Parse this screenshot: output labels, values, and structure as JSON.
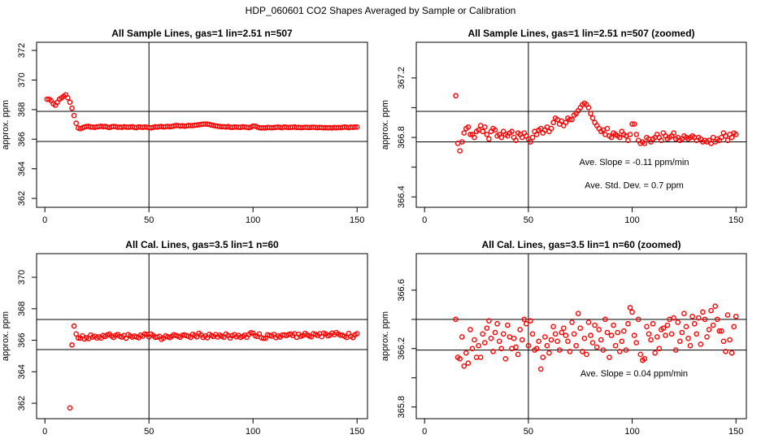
{
  "title": "HDP_060601  CO2 Shapes Averaged by Sample or Calibration",
  "chart_data": [
    {
      "type": "scatter",
      "title": "All Sample Lines, gas=1 lin=2.51 n=507",
      "y_label": "approx. ppm",
      "color": "#ff0000",
      "xlim": [
        -4,
        155
      ],
      "xticks": [
        0,
        50,
        100,
        150
      ],
      "ylim": [
        361.4,
        372.55
      ],
      "yticks": [
        362,
        364,
        366,
        368,
        370,
        372
      ],
      "hlines": [
        367.88,
        365.85
      ],
      "vlines": [
        50
      ],
      "x": [
        1,
        2,
        3,
        4,
        5,
        6,
        7,
        8,
        9,
        10,
        11,
        12,
        13,
        14,
        15,
        16,
        17,
        18,
        19,
        20,
        21,
        22,
        23,
        24,
        25,
        26,
        27,
        28,
        29,
        30,
        31,
        32,
        33,
        34,
        35,
        36,
        37,
        38,
        39,
        40,
        41,
        42,
        43,
        44,
        45,
        46,
        47,
        48,
        49,
        50,
        51,
        52,
        53,
        54,
        55,
        56,
        57,
        58,
        59,
        60,
        61,
        62,
        63,
        64,
        65,
        66,
        67,
        68,
        69,
        70,
        71,
        72,
        73,
        74,
        75,
        76,
        77,
        78,
        79,
        80,
        81,
        82,
        83,
        84,
        85,
        86,
        87,
        88,
        89,
        90,
        91,
        92,
        93,
        94,
        95,
        96,
        97,
        98,
        99,
        100,
        101,
        102,
        103,
        104,
        105,
        106,
        107,
        108,
        109,
        110,
        111,
        112,
        113,
        114,
        115,
        116,
        117,
        118,
        119,
        120,
        121,
        122,
        123,
        124,
        125,
        126,
        127,
        128,
        129,
        130,
        131,
        132,
        133,
        134,
        135,
        136,
        137,
        138,
        139,
        140,
        141,
        142,
        143,
        144,
        145,
        146,
        147,
        148,
        149,
        150
      ],
      "values": [
        368.7,
        368.7,
        368.6,
        368.4,
        368.3,
        368.5,
        368.7,
        368.8,
        368.9,
        369.0,
        368.8,
        368.5,
        368.1,
        367.6,
        367.08,
        366.76,
        366.71,
        366.77,
        366.83,
        366.86,
        366.87,
        366.82,
        366.82,
        366.8,
        366.84,
        366.85,
        366.88,
        366.84,
        366.87,
        366.82,
        366.79,
        366.84,
        366.86,
        366.85,
        366.81,
        366.82,
        366.8,
        366.84,
        366.82,
        366.81,
        366.83,
        366.84,
        366.8,
        366.78,
        366.83,
        366.82,
        366.8,
        366.83,
        366.81,
        366.79,
        366.77,
        366.8,
        366.84,
        366.82,
        366.85,
        366.86,
        366.83,
        366.85,
        366.87,
        366.84,
        366.86,
        366.9,
        366.93,
        366.92,
        366.89,
        366.91,
        366.88,
        366.9,
        366.93,
        366.92,
        366.92,
        366.95,
        366.96,
        366.98,
        367.0,
        367.02,
        367.03,
        367.02,
        367.0,
        366.96,
        366.93,
        366.9,
        366.88,
        366.86,
        366.84,
        366.85,
        366.82,
        366.86,
        366.81,
        366.8,
        366.83,
        366.82,
        366.81,
        366.8,
        366.84,
        366.82,
        366.81,
        366.78,
        366.82,
        366.89,
        366.89,
        366.82,
        366.78,
        366.76,
        366.77,
        366.76,
        366.8,
        366.79,
        366.77,
        366.79,
        366.8,
        366.82,
        366.8,
        366.78,
        366.83,
        366.81,
        366.79,
        366.8,
        366.81,
        366.83,
        366.79,
        366.8,
        366.78,
        366.79,
        366.81,
        366.8,
        366.79,
        366.8,
        366.81,
        366.8,
        366.78,
        366.8,
        366.79,
        366.77,
        366.78,
        366.77,
        366.78,
        366.76,
        366.8,
        366.77,
        366.79,
        366.78,
        366.8,
        366.83,
        366.81,
        366.78,
        366.82,
        366.8,
        366.83,
        366.82
      ]
    },
    {
      "type": "scatter",
      "title": "All Sample Lines, gas=1 lin=2.51 n=507 (zoomed)",
      "y_label": "approx. ppm",
      "color": "#ff0000",
      "xlim": [
        -4,
        155
      ],
      "xticks": [
        0,
        50,
        100,
        150
      ],
      "ylim": [
        366.33,
        367.44
      ],
      "yticks": [
        366.4,
        366.8,
        367.2
      ],
      "yminor": [
        366.6,
        367
      ],
      "hlines": [
        366.975,
        366.77
      ],
      "vlines": [
        50
      ],
      "annotations": [
        "Ave. Slope =  -0.11  ppm/min",
        "Ave. Std. Dev. =  0.7  ppm"
      ],
      "x": [
        15,
        16,
        17,
        18,
        19,
        20,
        21,
        22,
        23,
        24,
        25,
        26,
        27,
        28,
        29,
        30,
        31,
        32,
        33,
        34,
        35,
        36,
        37,
        38,
        39,
        40,
        41,
        42,
        43,
        44,
        45,
        46,
        47,
        48,
        49,
        50,
        51,
        52,
        53,
        54,
        55,
        56,
        57,
        58,
        59,
        60,
        61,
        62,
        63,
        64,
        65,
        66,
        67,
        68,
        69,
        70,
        71,
        72,
        73,
        74,
        75,
        76,
        77,
        78,
        79,
        80,
        81,
        82,
        83,
        84,
        85,
        86,
        87,
        88,
        89,
        90,
        91,
        92,
        93,
        94,
        95,
        96,
        97,
        98,
        99,
        100,
        101,
        102,
        103,
        104,
        105,
        106,
        107,
        108,
        109,
        110,
        111,
        112,
        113,
        114,
        115,
        116,
        117,
        118,
        119,
        120,
        121,
        122,
        123,
        124,
        125,
        126,
        127,
        128,
        129,
        130,
        131,
        132,
        133,
        134,
        135,
        136,
        137,
        138,
        139,
        140,
        141,
        142,
        143,
        144,
        145,
        146,
        147,
        148,
        149,
        150
      ],
      "values": [
        367.08,
        366.76,
        366.71,
        366.77,
        366.83,
        366.86,
        366.87,
        366.82,
        366.82,
        366.8,
        366.84,
        366.85,
        366.88,
        366.84,
        366.87,
        366.82,
        366.79,
        366.84,
        366.86,
        366.85,
        366.81,
        366.82,
        366.8,
        366.84,
        366.82,
        366.81,
        366.83,
        366.84,
        366.8,
        366.78,
        366.83,
        366.82,
        366.8,
        366.83,
        366.81,
        366.79,
        366.77,
        366.8,
        366.84,
        366.82,
        366.85,
        366.86,
        366.83,
        366.85,
        366.87,
        366.84,
        366.86,
        366.9,
        366.93,
        366.92,
        366.89,
        366.91,
        366.88,
        366.9,
        366.93,
        366.92,
        366.92,
        366.95,
        366.96,
        366.98,
        367.0,
        367.02,
        367.03,
        367.02,
        367.0,
        366.96,
        366.93,
        366.9,
        366.88,
        366.86,
        366.84,
        366.85,
        366.82,
        366.86,
        366.81,
        366.8,
        366.83,
        366.82,
        366.81,
        366.8,
        366.84,
        366.82,
        366.81,
        366.78,
        366.82,
        366.89,
        366.89,
        366.82,
        366.78,
        366.76,
        366.77,
        366.76,
        366.8,
        366.79,
        366.77,
        366.79,
        366.8,
        366.82,
        366.8,
        366.78,
        366.83,
        366.81,
        366.79,
        366.8,
        366.81,
        366.83,
        366.79,
        366.8,
        366.78,
        366.79,
        366.81,
        366.8,
        366.79,
        366.8,
        366.81,
        366.8,
        366.78,
        366.8,
        366.79,
        366.77,
        366.78,
        366.77,
        366.78,
        366.76,
        366.8,
        366.77,
        366.79,
        366.78,
        366.8,
        366.83,
        366.81,
        366.78,
        366.82,
        366.8,
        366.83,
        366.82
      ]
    },
    {
      "type": "scatter",
      "title": "All Cal. Lines, gas=3.5 lin=1 n=60",
      "y_label": "approx. ppm",
      "color": "#ff0000",
      "xlim": [
        -4,
        155
      ],
      "xticks": [
        0,
        50,
        100,
        150
      ],
      "ylim": [
        361.02,
        371.5
      ],
      "yticks": [
        362,
        364,
        366,
        368,
        370
      ],
      "hlines": [
        367.32,
        365.41
      ],
      "vlines": [
        50
      ],
      "x": [
        12,
        13,
        14,
        15,
        16,
        17,
        18,
        19,
        20,
        21,
        22,
        23,
        24,
        25,
        26,
        27,
        28,
        29,
        30,
        31,
        32,
        33,
        34,
        35,
        36,
        37,
        38,
        39,
        40,
        41,
        42,
        43,
        44,
        45,
        46,
        47,
        48,
        49,
        50,
        51,
        52,
        53,
        54,
        55,
        56,
        57,
        58,
        59,
        60,
        61,
        62,
        63,
        64,
        65,
        66,
        67,
        68,
        69,
        70,
        71,
        72,
        73,
        74,
        75,
        76,
        77,
        78,
        79,
        80,
        81,
        82,
        83,
        84,
        85,
        86,
        87,
        88,
        89,
        90,
        91,
        92,
        93,
        94,
        95,
        96,
        97,
        98,
        99,
        100,
        101,
        102,
        103,
        104,
        105,
        106,
        107,
        108,
        109,
        110,
        111,
        112,
        113,
        114,
        115,
        116,
        117,
        118,
        119,
        120,
        121,
        122,
        123,
        124,
        125,
        126,
        127,
        128,
        129,
        130,
        131,
        132,
        133,
        134,
        135,
        136,
        137,
        138,
        139,
        140,
        141,
        142,
        143,
        144,
        145,
        146,
        147,
        148,
        149,
        150
      ],
      "values": [
        361.7,
        365.7,
        366.9,
        366.4,
        366.14,
        366.13,
        366.28,
        366.08,
        366.17,
        366.1,
        366.33,
        366.2,
        366.26,
        366.14,
        366.22,
        366.14,
        366.3,
        366.24,
        366.34,
        366.39,
        366.27,
        366.18,
        366.31,
        366.37,
        366.25,
        366.2,
        366.3,
        366.13,
        366.36,
        366.28,
        366.2,
        366.27,
        366.21,
        366.16,
        366.33,
        366.26,
        366.4,
        366.37,
        366.22,
        366.39,
        366.3,
        366.19,
        366.2,
        366.25,
        366.06,
        366.14,
        366.28,
        366.22,
        366.17,
        366.26,
        366.35,
        366.3,
        366.25,
        366.19,
        366.31,
        366.34,
        366.29,
        366.25,
        366.18,
        366.38,
        366.3,
        366.22,
        366.44,
        366.34,
        366.18,
        366.27,
        366.16,
        366.38,
        366.29,
        366.24,
        366.36,
        366.21,
        366.33,
        366.26,
        366.19,
        366.4,
        366.31,
        366.14,
        366.29,
        366.36,
        366.22,
        366.31,
        366.18,
        366.25,
        366.32,
        366.19,
        366.37,
        366.48,
        366.45,
        366.29,
        366.24,
        366.4,
        366.16,
        366.12,
        366.13,
        366.35,
        366.3,
        366.26,
        366.37,
        366.17,
        366.28,
        366.2,
        366.33,
        366.34,
        366.29,
        366.36,
        366.4,
        366.3,
        366.41,
        366.19,
        366.38,
        366.25,
        366.31,
        366.44,
        366.35,
        366.27,
        366.22,
        366.42,
        366.37,
        366.3,
        366.41,
        366.23,
        366.45,
        366.4,
        366.28,
        366.33,
        366.46,
        366.36,
        366.49,
        366.4,
        366.32,
        366.32,
        366.25,
        366.18,
        366.43,
        366.26,
        366.17,
        366.35,
        366.42
      ]
    },
    {
      "type": "scatter",
      "title": "All Cal. Lines, gas=3.5 lin=1 n=60 (zoomed)",
      "y_label": "approx. ppm",
      "color": "#ff0000",
      "xlim": [
        -4,
        155
      ],
      "xticks": [
        0,
        50,
        100,
        150
      ],
      "ylim": [
        365.72,
        366.85
      ],
      "yticks": [
        365.8,
        366.2,
        366.6
      ],
      "yminor": [
        366,
        366.4
      ],
      "hlines": [
        366.4,
        366.19
      ],
      "vlines": [
        50
      ],
      "annotations": [
        "Ave. Slope =  0.04  ppm/min"
      ],
      "x": [
        15,
        16,
        17,
        18,
        19,
        20,
        21,
        22,
        23,
        24,
        25,
        26,
        27,
        28,
        29,
        30,
        31,
        32,
        33,
        34,
        35,
        36,
        37,
        38,
        39,
        40,
        41,
        42,
        43,
        44,
        45,
        46,
        47,
        48,
        49,
        50,
        51,
        52,
        53,
        54,
        55,
        56,
        57,
        58,
        59,
        60,
        61,
        62,
        63,
        64,
        65,
        66,
        67,
        68,
        69,
        70,
        71,
        72,
        73,
        74,
        75,
        76,
        77,
        78,
        79,
        80,
        81,
        82,
        83,
        84,
        85,
        86,
        87,
        88,
        89,
        90,
        91,
        92,
        93,
        94,
        95,
        96,
        97,
        98,
        99,
        100,
        101,
        102,
        103,
        104,
        105,
        106,
        107,
        108,
        109,
        110,
        111,
        112,
        113,
        114,
        115,
        116,
        117,
        118,
        119,
        120,
        121,
        122,
        123,
        124,
        125,
        126,
        127,
        128,
        129,
        130,
        131,
        132,
        133,
        134,
        135,
        136,
        137,
        138,
        139,
        140,
        141,
        142,
        143,
        144,
        145,
        146,
        147,
        148,
        149,
        150
      ],
      "values": [
        366.4,
        366.14,
        366.13,
        366.28,
        366.08,
        366.17,
        366.1,
        366.33,
        366.2,
        366.26,
        366.14,
        366.22,
        366.14,
        366.3,
        366.24,
        366.34,
        366.39,
        366.27,
        366.18,
        366.31,
        366.37,
        366.25,
        366.2,
        366.3,
        366.13,
        366.36,
        366.28,
        366.2,
        366.27,
        366.21,
        366.16,
        366.33,
        366.26,
        366.4,
        366.37,
        366.22,
        366.39,
        366.3,
        366.19,
        366.2,
        366.25,
        366.06,
        366.14,
        366.28,
        366.22,
        366.17,
        366.26,
        366.35,
        366.3,
        366.25,
        366.19,
        366.31,
        366.34,
        366.29,
        366.25,
        366.18,
        366.38,
        366.3,
        366.22,
        366.44,
        366.34,
        366.18,
        366.27,
        366.16,
        366.38,
        366.29,
        366.24,
        366.36,
        366.21,
        366.33,
        366.26,
        366.19,
        366.4,
        366.31,
        366.14,
        366.29,
        366.36,
        366.22,
        366.31,
        366.18,
        366.25,
        366.32,
        366.19,
        366.37,
        366.48,
        366.45,
        366.29,
        366.24,
        366.4,
        366.16,
        366.12,
        366.13,
        366.35,
        366.3,
        366.26,
        366.37,
        366.17,
        366.28,
        366.2,
        366.33,
        366.34,
        366.29,
        366.36,
        366.4,
        366.3,
        366.41,
        366.19,
        366.38,
        366.25,
        366.31,
        366.44,
        366.35,
        366.27,
        366.22,
        366.42,
        366.37,
        366.3,
        366.41,
        366.23,
        366.45,
        366.4,
        366.28,
        366.33,
        366.46,
        366.36,
        366.49,
        366.4,
        366.32,
        366.32,
        366.25,
        366.18,
        366.43,
        366.26,
        366.17,
        366.35,
        366.42
      ]
    }
  ]
}
